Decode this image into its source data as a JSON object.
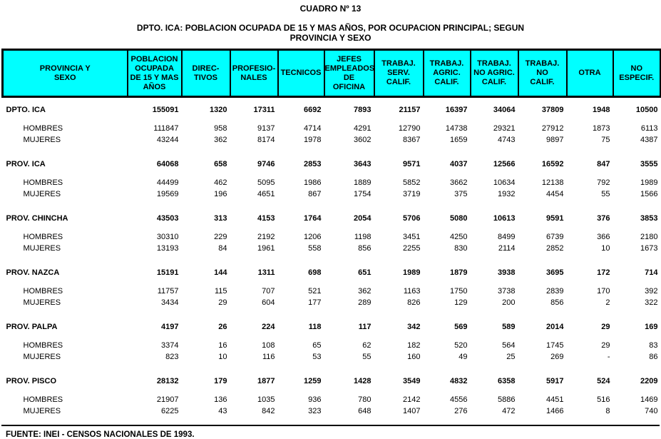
{
  "title": "CUADRO Nº 13",
  "subtitle": {
    "line1": "DPTO. ICA: POBLACION OCUPADA DE 15 Y MAS AÑOS, POR OCUPACION PRINCIPAL; SEGUN",
    "line2": "PROVINCIA Y SEXO"
  },
  "footer": "FUENTE: INEI - CENSOS NACIONALES DE 1993.",
  "colors": {
    "header_bg": "#00ffff",
    "header_text": "#000000",
    "border": "#000000",
    "body_bg": "#ffffff"
  },
  "table": {
    "headers": [
      {
        "id": "provincia-sexo",
        "lines": [
          "PROVINCIA Y",
          "SEXO"
        ]
      },
      {
        "id": "poblacion-ocupada",
        "lines": [
          "POBLACION",
          "OCUPADA",
          "DE 15 Y MAS",
          "AÑOS"
        ]
      },
      {
        "id": "directivos",
        "lines": [
          "DIREC-",
          "TIVOS"
        ]
      },
      {
        "id": "profesionales",
        "lines": [
          "PROFESIO-",
          "NALES"
        ]
      },
      {
        "id": "tecnicos",
        "lines": [
          "TECNICOS"
        ]
      },
      {
        "id": "jefes-empleados-oficina",
        "lines": [
          "JEFES",
          "EMPLEADOS",
          "DE",
          "OFICINA"
        ]
      },
      {
        "id": "trabaj-serv-calif",
        "lines": [
          "TRABAJ.",
          "SERV.",
          "CALIF."
        ]
      },
      {
        "id": "trabaj-agric-calif",
        "lines": [
          "TRABAJ.",
          "AGRIC.",
          "CALIF."
        ]
      },
      {
        "id": "trabaj-no-agric-calif",
        "lines": [
          "TRABAJ.",
          "NO AGRIC.",
          "CALIF."
        ]
      },
      {
        "id": "trabaj-no-calif",
        "lines": [
          "TRABAJ.",
          "NO",
          "CALIF."
        ]
      },
      {
        "id": "otra",
        "lines": [
          "OTRA"
        ]
      },
      {
        "id": "no-especif",
        "lines": [
          "NO",
          "ESPECIF."
        ]
      }
    ],
    "rows": [
      {
        "type": "group",
        "label": "DPTO. ICA",
        "values": [
          "155091",
          "1320",
          "17311",
          "6692",
          "7893",
          "21157",
          "16397",
          "34064",
          "37809",
          "1948",
          "10500"
        ]
      },
      {
        "type": "sub",
        "label": "HOMBRES",
        "values": [
          "111847",
          "958",
          "9137",
          "4714",
          "4291",
          "12790",
          "14738",
          "29321",
          "27912",
          "1873",
          "6113"
        ]
      },
      {
        "type": "sub",
        "label": "MUJERES",
        "values": [
          "43244",
          "362",
          "8174",
          "1978",
          "3602",
          "8367",
          "1659",
          "4743",
          "9897",
          "75",
          "4387"
        ]
      },
      {
        "type": "group",
        "label": "PROV. ICA",
        "values": [
          "64068",
          "658",
          "9746",
          "2853",
          "3643",
          "9571",
          "4037",
          "12566",
          "16592",
          "847",
          "3555"
        ]
      },
      {
        "type": "sub",
        "label": "HOMBRES",
        "values": [
          "44499",
          "462",
          "5095",
          "1986",
          "1889",
          "5852",
          "3662",
          "10634",
          "12138",
          "792",
          "1989"
        ]
      },
      {
        "type": "sub",
        "label": "MUJERES",
        "values": [
          "19569",
          "196",
          "4651",
          "867",
          "1754",
          "3719",
          "375",
          "1932",
          "4454",
          "55",
          "1566"
        ]
      },
      {
        "type": "group",
        "label": "PROV. CHINCHA",
        "values": [
          "43503",
          "313",
          "4153",
          "1764",
          "2054",
          "5706",
          "5080",
          "10613",
          "9591",
          "376",
          "3853"
        ]
      },
      {
        "type": "sub",
        "label": "HOMBRES",
        "values": [
          "30310",
          "229",
          "2192",
          "1206",
          "1198",
          "3451",
          "4250",
          "8499",
          "6739",
          "366",
          "2180"
        ]
      },
      {
        "type": "sub",
        "label": "MUJERES",
        "values": [
          "13193",
          "84",
          "1961",
          "558",
          "856",
          "2255",
          "830",
          "2114",
          "2852",
          "10",
          "1673"
        ]
      },
      {
        "type": "group",
        "label": "PROV. NAZCA",
        "values": [
          "15191",
          "144",
          "1311",
          "698",
          "651",
          "1989",
          "1879",
          "3938",
          "3695",
          "172",
          "714"
        ]
      },
      {
        "type": "sub",
        "label": "HOMBRES",
        "values": [
          "11757",
          "115",
          "707",
          "521",
          "362",
          "1163",
          "1750",
          "3738",
          "2839",
          "170",
          "392"
        ]
      },
      {
        "type": "sub",
        "label": "MUJERES",
        "values": [
          "3434",
          "29",
          "604",
          "177",
          "289",
          "826",
          "129",
          "200",
          "856",
          "2",
          "322"
        ]
      },
      {
        "type": "group",
        "label": "PROV. PALPA",
        "values": [
          "4197",
          "26",
          "224",
          "118",
          "117",
          "342",
          "569",
          "589",
          "2014",
          "29",
          "169"
        ]
      },
      {
        "type": "sub",
        "label": "HOMBRES",
        "values": [
          "3374",
          "16",
          "108",
          "65",
          "62",
          "182",
          "520",
          "564",
          "1745",
          "29",
          "83"
        ]
      },
      {
        "type": "sub",
        "label": "MUJERES",
        "values": [
          "823",
          "10",
          "116",
          "53",
          "55",
          "160",
          "49",
          "25",
          "269",
          "-",
          "86"
        ]
      },
      {
        "type": "group",
        "label": "PROV. PISCO",
        "values": [
          "28132",
          "179",
          "1877",
          "1259",
          "1428",
          "3549",
          "4832",
          "6358",
          "5917",
          "524",
          "2209"
        ]
      },
      {
        "type": "sub",
        "label": "HOMBRES",
        "values": [
          "21907",
          "136",
          "1035",
          "936",
          "780",
          "2142",
          "4556",
          "5886",
          "4451",
          "516",
          "1469"
        ]
      },
      {
        "type": "sub",
        "label": "MUJERES",
        "values": [
          "6225",
          "43",
          "842",
          "323",
          "648",
          "1407",
          "276",
          "472",
          "1466",
          "8",
          "740"
        ]
      }
    ]
  }
}
